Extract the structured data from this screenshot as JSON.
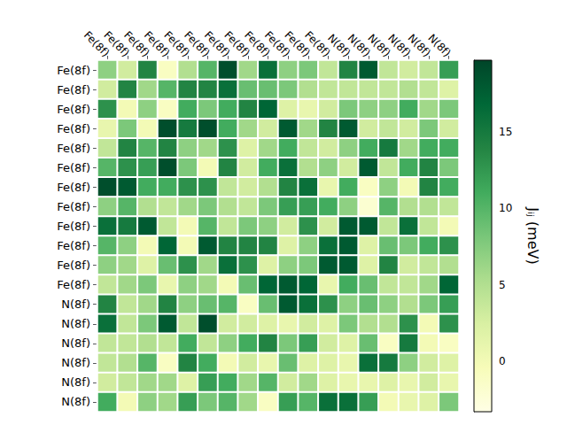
{
  "chart_data": {
    "type": "heatmap",
    "x_categories": [
      "Fe(8f)",
      "Fe(8f)",
      "Fe(8f)",
      "Fe(8f)",
      "Fe(8f)",
      "Fe(8f)",
      "Fe(8f)",
      "Fe(8f)",
      "Fe(8f)",
      "Fe(8f)",
      "Fe(8f)",
      "Fe(8f)",
      "N(8f)",
      "N(8f)",
      "N(8f)",
      "N(8f)",
      "N(8f)",
      "N(8f)"
    ],
    "y_categories": [
      "Fe(8f)",
      "Fe(8f)",
      "Fe(8f)",
      "Fe(8f)",
      "Fe(8f)",
      "Fe(8f)",
      "Fe(8f)",
      "Fe(8f)",
      "Fe(8f)",
      "Fe(8f)",
      "Fe(8f)",
      "Fe(8f)",
      "N(8f)",
      "N(8f)",
      "N(8f)",
      "N(8f)",
      "N(8f)",
      "N(8f)"
    ],
    "cells": [
      [
        7,
        3,
        14,
        -1,
        5,
        10,
        19,
        6,
        16,
        7,
        8,
        4,
        14,
        18,
        4,
        3,
        4,
        12
      ],
      [
        3,
        14,
        6,
        10,
        14,
        14,
        16,
        9,
        9,
        8,
        5,
        4,
        4,
        4,
        4,
        5,
        4,
        2
      ],
      [
        13,
        0,
        7,
        -1,
        11,
        8,
        11,
        14,
        17,
        2,
        1,
        3,
        8,
        7,
        7,
        11,
        6,
        8
      ],
      [
        1,
        8,
        0,
        19,
        15,
        19,
        11,
        6,
        3,
        18,
        6,
        14,
        18,
        3,
        4,
        3,
        8,
        3
      ],
      [
        4,
        14,
        10,
        14,
        7,
        6,
        13,
        2,
        6,
        11,
        4,
        3,
        7,
        11,
        15,
        6,
        11,
        11
      ],
      [
        10,
        13,
        12,
        19,
        8,
        0,
        14,
        3,
        11,
        16,
        5,
        7,
        3,
        18,
        4,
        11,
        14,
        8
      ],
      [
        19,
        18,
        11,
        11,
        13,
        13,
        4,
        3,
        5,
        14,
        16,
        1,
        11,
        -1,
        7,
        0,
        14,
        11
      ],
      [
        7,
        10,
        5,
        4,
        6,
        8,
        5,
        4,
        8,
        12,
        12,
        11,
        7,
        -2,
        10,
        5,
        5,
        4
      ],
      [
        16,
        15,
        18,
        4,
        0,
        10,
        4,
        8,
        7,
        3,
        13,
        3,
        18,
        18,
        4,
        16,
        4,
        0
      ],
      [
        10,
        7,
        0,
        17,
        0,
        18,
        14,
        14,
        14,
        2,
        7,
        16,
        18,
        2,
        9,
        8,
        11,
        13
      ],
      [
        7,
        6,
        2,
        9,
        13,
        6,
        16,
        13,
        2,
        7,
        8,
        18,
        18,
        2,
        14,
        3,
        4,
        5
      ],
      [
        4,
        6,
        8,
        1,
        7,
        6,
        0,
        9,
        17,
        18,
        17,
        1,
        11,
        9,
        4,
        4,
        6,
        17
      ],
      [
        14,
        4,
        6,
        14,
        7,
        9,
        10,
        -1,
        9,
        18,
        16,
        13,
        7,
        9,
        7,
        5,
        8,
        12
      ],
      [
        16,
        4,
        8,
        18,
        4,
        19,
        3,
        3,
        2,
        1,
        3,
        2,
        8,
        5,
        5,
        13,
        0,
        13
      ],
      [
        4,
        4,
        5,
        4,
        11,
        4,
        7,
        11,
        14,
        8,
        12,
        3,
        2,
        9,
        -1,
        15,
        0,
        -1
      ],
      [
        4,
        5,
        10,
        -1,
        14,
        11,
        0,
        3,
        1,
        9,
        2,
        2,
        1,
        16,
        15,
        7,
        3,
        2
      ],
      [
        3,
        4,
        6,
        6,
        2,
        12,
        11,
        6,
        10,
        3,
        6,
        2,
        1,
        1,
        2,
        1,
        3,
        1
      ],
      [
        11,
        0,
        7,
        6,
        12,
        8,
        10,
        6,
        -1,
        12,
        10,
        16,
        16,
        12,
        0,
        1,
        2,
        8
      ]
    ],
    "colorbar": {
      "label": "Jᵢⱼ (meV)",
      "range": [
        -3.3,
        19.7
      ],
      "ticks": [
        0,
        5,
        10,
        15
      ]
    }
  }
}
